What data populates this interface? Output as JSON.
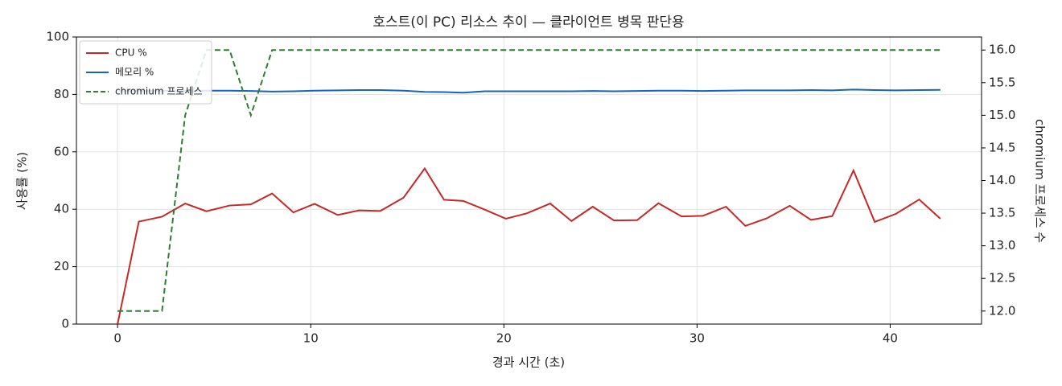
{
  "chart_data": {
    "type": "line",
    "title": "호스트(이 PC) 리소스 추이 — 클라이언트 병목 판단용",
    "x_label": "경과 시간 (초)",
    "y_label": "사용률 (%)",
    "y2_label": "chromium 프로세스 수",
    "x": [
      0,
      1.1,
      2.3,
      3.5,
      4.6,
      5.8,
      6.9,
      8.0,
      9.1,
      10.2,
      11.4,
      12.5,
      13.6,
      14.8,
      15.9,
      16.9,
      17.9,
      19.0,
      20.1,
      21.2,
      22.4,
      23.5,
      24.6,
      25.7,
      26.9,
      28.0,
      29.2,
      30.3,
      31.5,
      32.5,
      33.6,
      34.8,
      35.9,
      37.0,
      38.1,
      39.2,
      40.3,
      41.5,
      42.6
    ],
    "series": [
      {
        "name": "CPU %",
        "color": "#c62828",
        "style": "solid",
        "axis": "y",
        "values": [
          0,
          35.7,
          37.4,
          42,
          39.3,
          41.3,
          41.7,
          45.5,
          38.9,
          41.9,
          38,
          39.6,
          39.4,
          44,
          54.2,
          43.3,
          42.9,
          39.9,
          36.7,
          38.6,
          42,
          35.9,
          40.9,
          36.1,
          36.2,
          42.1,
          37.5,
          37.7,
          40.9,
          34.2,
          36.8,
          41.2,
          36.3,
          37.6,
          53.5,
          35.6,
          38.4,
          43.4,
          36.7
        ]
      },
      {
        "name": "메모리 %",
        "color": "#1565c0",
        "style": "solid",
        "axis": "y",
        "values": [
          81.2,
          81.2,
          81.2,
          81.3,
          81.3,
          81.3,
          81.2,
          81.0,
          81.1,
          81.3,
          81.4,
          81.5,
          81.5,
          81.3,
          80.9,
          80.8,
          80.6,
          81.1,
          81.1,
          81.1,
          81.1,
          81.1,
          81.2,
          81.1,
          81.2,
          81.3,
          81.3,
          81.2,
          81.3,
          81.4,
          81.4,
          81.4,
          81.5,
          81.4,
          81.7,
          81.5,
          81.4,
          81.5,
          81.6
        ]
      },
      {
        "name": "chromium 프로세스",
        "color": "#2e7d32",
        "style": "dashed",
        "axis": "y2",
        "values": [
          12,
          12,
          12,
          15,
          16,
          16,
          15,
          16,
          16,
          16,
          16,
          16,
          16,
          16,
          16,
          16,
          16,
          16,
          16,
          16,
          16,
          16,
          16,
          16,
          16,
          16,
          16,
          16,
          16,
          16,
          16,
          16,
          16,
          16,
          16,
          16,
          16,
          16,
          16
        ]
      }
    ],
    "xlim": [
      -2.13,
      44.73
    ],
    "xticks": [
      0,
      10,
      20,
      30,
      40
    ],
    "ylim": [
      0,
      100
    ],
    "yticks": [
      0,
      20,
      40,
      60,
      80,
      100
    ],
    "y2lim": [
      11.8,
      16.2
    ],
    "y2ticks": [
      {
        "value": 12,
        "label": "12.0"
      },
      {
        "value": 12.5,
        "label": "12.5"
      },
      {
        "value": 13,
        "label": "13.0"
      },
      {
        "value": 13.5,
        "label": "13.5"
      },
      {
        "value": 14,
        "label": "14.0"
      },
      {
        "value": 14.5,
        "label": "14.5"
      },
      {
        "value": 15,
        "label": "15.0"
      },
      {
        "value": 15.5,
        "label": "15.5"
      },
      {
        "value": 16,
        "label": "16.0"
      }
    ],
    "grid": true,
    "legend": "upper-left"
  }
}
